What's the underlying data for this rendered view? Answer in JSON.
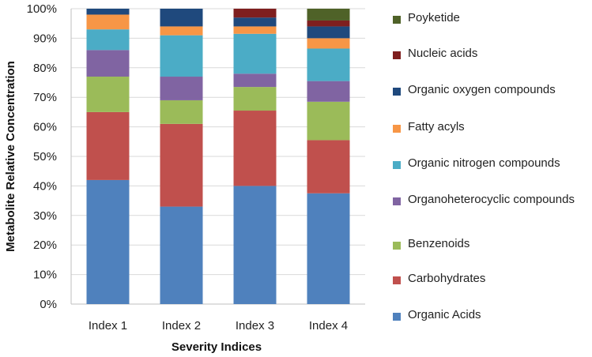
{
  "chart_data": {
    "type": "bar",
    "stacked": true,
    "title": "",
    "xlabel": "Severity Indices",
    "ylabel": "Metabolite Relative Concentration",
    "ylim": [
      0,
      100
    ],
    "y_ticks": [
      "0%",
      "10%",
      "20%",
      "30%",
      "40%",
      "50%",
      "60%",
      "70%",
      "80%",
      "90%",
      "100%"
    ],
    "categories": [
      "Index 1",
      "Index 2",
      "Index 3",
      "Index 4"
    ],
    "legend_position": "right",
    "series": [
      {
        "name": "Organic Acids",
        "color": "#4f81bd",
        "values": [
          42,
          33,
          40,
          37.5
        ]
      },
      {
        "name": "Carbohydrates",
        "color": "#c0504d",
        "values": [
          23,
          28,
          25.5,
          18
        ]
      },
      {
        "name": "Benzenoids",
        "color": "#9bbb59",
        "values": [
          12,
          8,
          8,
          13
        ]
      },
      {
        "name": "Organoheterocyclic compounds",
        "color": "#8064a2",
        "values": [
          9,
          8,
          4.5,
          7
        ]
      },
      {
        "name": "Organic nitrogen compounds",
        "color": "#4bacc6",
        "values": [
          7,
          14,
          13.5,
          11
        ]
      },
      {
        "name": "Fatty acyls",
        "color": "#f79646",
        "values": [
          5,
          3,
          2.5,
          3.5
        ]
      },
      {
        "name": "Organic oxygen compounds",
        "color": "#1f497d",
        "values": [
          2,
          6,
          3,
          4
        ]
      },
      {
        "name": "Nucleic acids",
        "color": "#7f1f1f",
        "values": [
          0,
          0,
          3,
          2
        ]
      },
      {
        "name": "Poyketide",
        "color": "#4f6228",
        "values": [
          0,
          0,
          0,
          4
        ]
      }
    ]
  }
}
